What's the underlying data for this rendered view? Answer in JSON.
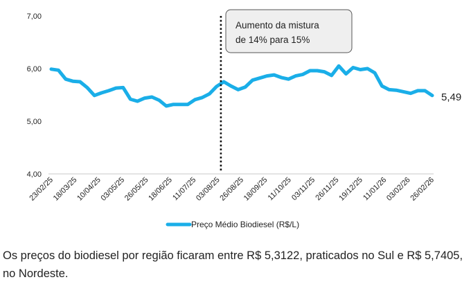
{
  "chart_data": {
    "type": "line",
    "ylim": [
      4.0,
      7.0
    ],
    "y_ticks": [
      "4,00",
      "5,00",
      "6,00",
      "7,00"
    ],
    "x_tick_labels": [
      "23/02/25",
      "18/03/25",
      "10/04/25",
      "03/05/25",
      "26/05/25",
      "18/06/25",
      "11/07/25",
      "03/08/25",
      "26/08/25",
      "18/09/25",
      "11/10/25",
      "03/11/25",
      "26/11/25",
      "19/12/25",
      "11/01/26",
      "03/02/26",
      "26/02/26"
    ],
    "series": [
      {
        "name": "Preço Médio Biodiesel (R$/L)",
        "color": "#1aaee8",
        "values": [
          5.99,
          5.97,
          5.8,
          5.76,
          5.75,
          5.64,
          5.49,
          5.54,
          5.58,
          5.63,
          5.64,
          5.42,
          5.38,
          5.44,
          5.46,
          5.4,
          5.29,
          5.32,
          5.32,
          5.32,
          5.41,
          5.45,
          5.52,
          5.66,
          5.75,
          5.67,
          5.6,
          5.65,
          5.78,
          5.82,
          5.86,
          5.88,
          5.83,
          5.8,
          5.86,
          5.89,
          5.96,
          5.96,
          5.94,
          5.87,
          6.05,
          5.9,
          6.02,
          5.98,
          6.0,
          5.92,
          5.67,
          5.6,
          5.59,
          5.56,
          5.53,
          5.58,
          5.58,
          5.49
        ]
      }
    ],
    "end_label": "5,49",
    "vline_index": 23.6,
    "annotation": "Aumento da mistura de 14% para 15%",
    "annotation_lines": [
      "Aumento da mistura",
      "de 14% para 15%"
    ],
    "legend": "bottom",
    "grid": false
  },
  "caption": "Os preços do biodiesel por região ficaram entre R$ 5,3122, praticados no Sul e R$ 5,7405, no Nordeste."
}
